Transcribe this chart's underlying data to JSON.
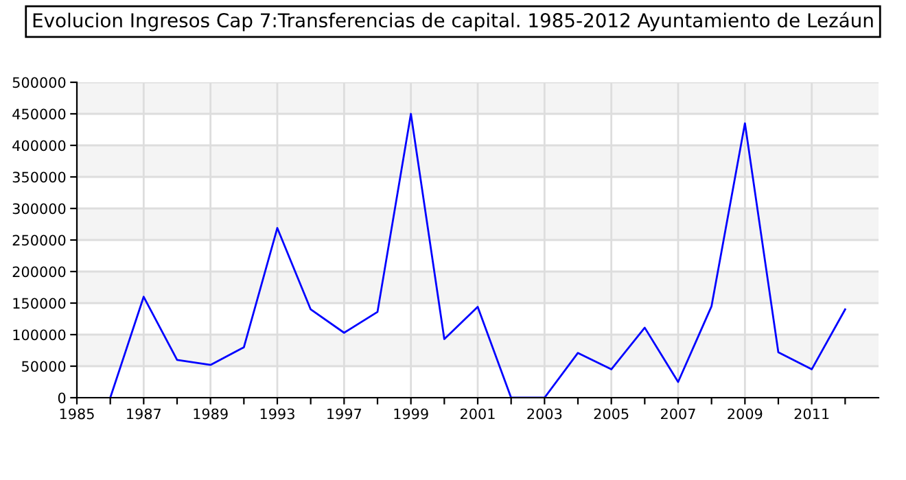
{
  "chart_data": {
    "type": "line",
    "title": "Evolucion Ingresos Cap 7:Transferencias de capital. 1985-2012 Ayuntamiento de Lezáun",
    "categories": [
      "1985",
      null,
      "1987",
      null,
      "1989",
      null,
      "1993",
      null,
      "1997",
      null,
      "1999",
      null,
      "2001",
      null,
      "2003",
      null,
      "2005",
      null,
      "2007",
      null,
      "2009",
      null,
      "2011",
      null
    ],
    "series": [
      {
        "color": "#0000ff",
        "values": [
          null,
          0,
          160000,
          60000,
          52000,
          80000,
          269000,
          140000,
          103000,
          136000,
          450000,
          93000,
          144000,
          0,
          0,
          71000,
          45000,
          111000,
          25000,
          145000,
          435000,
          72000,
          45000,
          140000
        ]
      }
    ],
    "ylim": [
      0,
      500000
    ],
    "yticks": [
      0,
      50000,
      100000,
      150000,
      200000,
      250000,
      300000,
      350000,
      400000,
      450000,
      500000
    ],
    "grid": true,
    "marker": "none",
    "line_style": "solid",
    "legend": false
  }
}
